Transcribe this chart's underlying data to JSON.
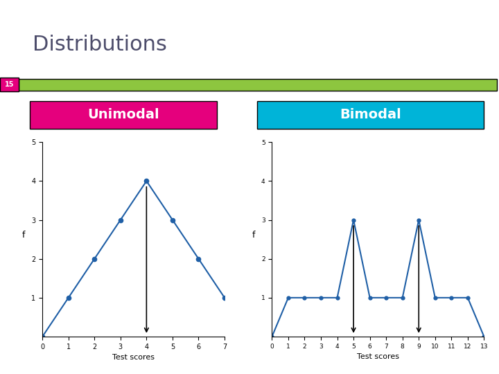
{
  "title": "Distributions",
  "title_color": "#4d4d6b",
  "title_fontsize": 22,
  "slide_number": "15",
  "slide_number_bg": "#e5007d",
  "green_bar_color": "#8dc63f",
  "unimodal_label": "Unimodal",
  "bimodal_label": "Bimodal",
  "unimodal_bg": "#e5007d",
  "bimodal_bg": "#00b4d8",
  "label_color": "#ffffff",
  "label_fontsize": 14,
  "line_color": "#1f5fa6",
  "marker_color": "#1f5fa6",
  "uni_x": [
    0,
    1,
    2,
    3,
    4,
    5,
    6,
    7
  ],
  "uni_y": [
    0,
    1,
    2,
    3,
    4,
    3,
    2,
    1
  ],
  "uni_xlabel": "Test scores",
  "uni_ylabel": "f",
  "uni_xlim": [
    0,
    7
  ],
  "uni_ylim": [
    0,
    5
  ],
  "bi_x": [
    0,
    1,
    2,
    3,
    4,
    5,
    6,
    7,
    8,
    9,
    10,
    11,
    12,
    13
  ],
  "bi_y": [
    0,
    1,
    1,
    1,
    1,
    3,
    1,
    1,
    1,
    3,
    1,
    1,
    1,
    0
  ],
  "bi_xlabel": "Test scores",
  "bi_ylabel": "f",
  "bi_xlim": [
    0,
    13
  ],
  "bi_ylim": [
    0,
    5
  ],
  "bg_color": "#ffffff"
}
